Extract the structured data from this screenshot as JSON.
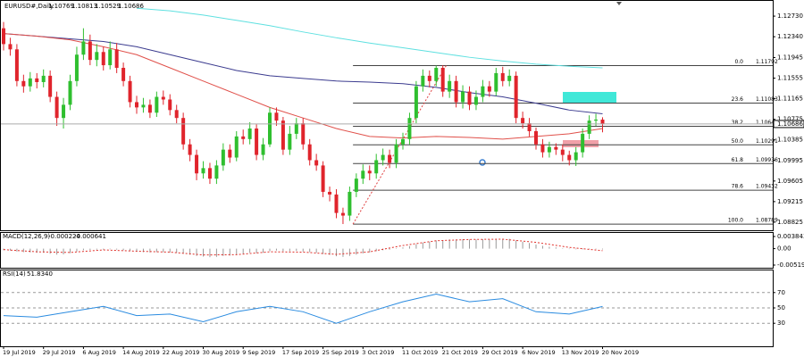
{
  "chart_data": [
    {
      "type": "candlestick",
      "title": "EURUSD#,Daily",
      "up_color": "#2fbf2f",
      "down_color": "#e0242c",
      "open": [
        1.125,
        1.122,
        1.121,
        1.115,
        1.114,
        1.1155,
        1.1148,
        1.116,
        1.112,
        1.108,
        1.1105,
        1.115,
        1.12,
        1.1225,
        1.119,
        1.1205,
        1.118,
        1.121,
        1.1175,
        1.115,
        1.111,
        1.11,
        1.1105,
        1.109,
        1.112,
        1.1115,
        1.1095,
        1.108,
        1.103,
        1.101,
        1.0975,
        1.0985,
        1.0965,
        1.099,
        1.102,
        1.1005,
        1.1045,
        1.104,
        1.106,
        1.101,
        1.103,
        1.109,
        1.1075,
        1.102,
        1.105,
        1.107,
        1.103,
        1.1,
        1.099,
        1.094,
        1.0935,
        1.09,
        1.0895,
        1.094,
        1.0965,
        1.098,
        1.0975,
        1.1,
        1.101,
        1.0995,
        1.103,
        1.104,
        1.108,
        1.114,
        1.116,
        1.115,
        1.1175,
        1.113,
        1.115,
        1.111,
        1.113,
        1.1105,
        1.112,
        1.114,
        1.113,
        1.1165,
        1.115,
        1.116,
        1.108,
        1.107,
        1.1055,
        1.103,
        1.1015,
        1.1025,
        1.102,
        1.101,
        1.1,
        1.1015,
        1.105,
        1.1075,
        1.10769
      ],
      "high": [
        1.1262,
        1.1232,
        1.122,
        1.1162,
        1.1167,
        1.1165,
        1.1172,
        1.117,
        1.113,
        1.1118,
        1.1162,
        1.1215,
        1.125,
        1.1238,
        1.122,
        1.1215,
        1.1225,
        1.1222,
        1.1185,
        1.116,
        1.1122,
        1.1118,
        1.1115,
        1.113,
        1.1132,
        1.1125,
        1.1105,
        1.109,
        1.104,
        1.102,
        1.0998,
        1.0995,
        1.1,
        1.1032,
        1.103,
        1.1055,
        1.1058,
        1.1072,
        1.1068,
        1.1042,
        1.11,
        1.11,
        1.1082,
        1.1065,
        1.108,
        1.108,
        1.104,
        1.1012,
        1.0998,
        1.095,
        1.0945,
        1.091,
        1.095,
        1.0975,
        1.0992,
        1.099,
        1.1012,
        1.1022,
        1.102,
        1.104,
        1.1052,
        1.109,
        1.115,
        1.1172,
        1.117,
        1.11792,
        1.118,
        1.1162,
        1.116,
        1.1142,
        1.114,
        1.1132,
        1.1152,
        1.115,
        1.1175,
        1.1177,
        1.1172,
        1.1168,
        1.1092,
        1.108,
        1.1062,
        1.104,
        1.1035,
        1.1032,
        1.103,
        1.1018,
        1.1025,
        1.106,
        1.1085,
        1.1088,
        1.10813
      ],
      "low": [
        1.1208,
        1.1198,
        1.114,
        1.1128,
        1.113,
        1.1136,
        1.1138,
        1.111,
        1.1065,
        1.106,
        1.1095,
        1.114,
        1.119,
        1.118,
        1.1178,
        1.117,
        1.1172,
        1.1165,
        1.114,
        1.11,
        1.1088,
        1.109,
        1.108,
        1.1082,
        1.1105,
        1.1085,
        1.107,
        1.102,
        1.0998,
        1.0962,
        1.0965,
        1.0955,
        1.0955,
        1.098,
        1.0995,
        1.0998,
        1.103,
        1.103,
        1.1,
        1.1,
        1.1025,
        1.1065,
        1.101,
        1.101,
        1.104,
        1.102,
        1.099,
        1.098,
        1.093,
        1.0922,
        1.089,
        1.0879,
        1.0885,
        1.093,
        1.0955,
        1.0962,
        1.0965,
        1.099,
        1.0985,
        1.0985,
        1.102,
        1.103,
        1.107,
        1.113,
        1.1138,
        1.114,
        1.112,
        1.1118,
        1.11,
        1.1098,
        1.1095,
        1.1095,
        1.111,
        1.112,
        1.1122,
        1.114,
        1.114,
        1.107,
        1.106,
        1.1045,
        1.102,
        1.1005,
        1.1005,
        1.101,
        1.0998,
        1.099,
        1.0989,
        1.1005,
        1.104,
        1.1065,
        1.10529
      ],
      "close": [
        1.122,
        1.121,
        1.115,
        1.114,
        1.1155,
        1.1148,
        1.116,
        1.112,
        1.108,
        1.1105,
        1.115,
        1.12,
        1.1225,
        1.119,
        1.1205,
        1.118,
        1.121,
        1.1175,
        1.115,
        1.111,
        1.11,
        1.1105,
        1.109,
        1.112,
        1.1115,
        1.1095,
        1.108,
        1.103,
        1.101,
        1.0975,
        1.0985,
        1.0965,
        1.099,
        1.102,
        1.1005,
        1.1045,
        1.104,
        1.106,
        1.101,
        1.103,
        1.109,
        1.1075,
        1.102,
        1.105,
        1.107,
        1.103,
        1.1,
        1.099,
        1.094,
        1.0935,
        1.09,
        1.0895,
        1.094,
        1.0965,
        1.098,
        1.0975,
        1.1,
        1.101,
        1.0995,
        1.103,
        1.104,
        1.108,
        1.114,
        1.116,
        1.115,
        1.1175,
        1.113,
        1.115,
        1.111,
        1.113,
        1.1105,
        1.112,
        1.114,
        1.113,
        1.1165,
        1.115,
        1.116,
        1.108,
        1.107,
        1.1055,
        1.103,
        1.1015,
        1.1025,
        1.102,
        1.101,
        1.1,
        1.1015,
        1.105,
        1.1075,
        1.10769,
        1.10686
      ],
      "ylim": [
        1.08672,
        1.12968
      ],
      "yticks": [
        {
          "value": 1.1273,
          "label": "1.12730"
        },
        {
          "value": 1.1234,
          "label": "1.12340"
        },
        1.11945,
        1.11555,
        1.11165,
        1.10775,
        1.10385,
        1.09995,
        1.09605,
        1.09215,
        1.08825
      ],
      "xticks": [
        {
          "value": 0,
          "label": "19 Jul 2019"
        },
        {
          "value": 6,
          "label": "29 Jul 2019"
        },
        {
          "value": 12,
          "label": "6 Aug 2019"
        },
        {
          "value": 18,
          "label": "14 Aug 2019"
        },
        {
          "value": 24,
          "label": "22 Aug 2019"
        },
        {
          "value": 30,
          "label": "30 Aug 2019"
        },
        {
          "value": 36,
          "label": "9 Sep 2019"
        },
        {
          "value": 42,
          "label": "17 Sep 2019"
        },
        {
          "value": 48,
          "label": "25 Sep 2019"
        },
        {
          "value": 54,
          "label": "3 Oct 2019"
        },
        {
          "value": 60,
          "label": "11 Oct 2019"
        },
        {
          "value": 66,
          "label": "21 Oct 2019"
        },
        {
          "value": 72,
          "label": "29 Oct 2019"
        },
        {
          "value": 78,
          "label": "6 Nov 2019"
        },
        {
          "value": 84,
          "label": "13 Nov 2019"
        },
        {
          "value": 90,
          "label": "20 Nov 2019"
        }
      ],
      "moving_averages": [
        {
          "color": "#5ee0e0",
          "x": [
            0,
            5,
            10,
            15,
            20,
            25,
            30,
            35,
            40,
            45,
            50,
            55,
            60,
            65,
            70,
            75,
            80,
            85,
            90
          ],
          "values": [
            null,
            null,
            null,
            null,
            1.1288,
            1.1283,
            1.1275,
            1.1265,
            1.1255,
            1.1243,
            1.1232,
            1.1222,
            1.1213,
            1.1204,
            1.1195,
            1.1188,
            1.1182,
            1.1178,
            1.1175
          ]
        },
        {
          "color": "#3b3b8f",
          "x": [
            0,
            5,
            10,
            15,
            20,
            25,
            30,
            35,
            40,
            45,
            50,
            55,
            60,
            65,
            70,
            75,
            80,
            85,
            90
          ],
          "values": [
            1.124,
            1.1235,
            1.123,
            1.1225,
            1.1215,
            1.12,
            1.1185,
            1.117,
            1.116,
            1.1155,
            1.115,
            1.1148,
            1.1145,
            1.1138,
            1.1128,
            1.112,
            1.1108,
            1.1095,
            1.1088
          ]
        },
        {
          "color": "#e0504a",
          "x": [
            0,
            5,
            10,
            15,
            20,
            25,
            30,
            35,
            40,
            45,
            50,
            55,
            60,
            65,
            70,
            75,
            80,
            85,
            90
          ],
          "values": [
            1.124,
            1.1235,
            1.1228,
            1.1215,
            1.12,
            1.1175,
            1.115,
            1.1125,
            1.11,
            1.108,
            1.106,
            1.1045,
            1.1042,
            1.1045,
            1.1043,
            1.104,
            1.1045,
            1.105,
            1.106
          ]
        }
      ],
      "fibonacci": [
        {
          "level": "0.0",
          "value": 1.11792
        },
        {
          "level": "23.6",
          "value": 1.11083
        },
        {
          "level": "38.2",
          "value": 1.10643
        },
        {
          "level": "50.0",
          "value": 1.10291
        },
        {
          "level": "61.8",
          "value": 1.09936
        },
        {
          "level": "78.6",
          "value": 1.09432
        },
        {
          "level": "100.0",
          "value": 1.08789
        }
      ]
    },
    {
      "type": "macd",
      "title": "MACD(12,26,9)",
      "color": "#9a9a9a",
      "signal_color": "#e0302a",
      "histogram": [
        -0.0005,
        -0.0006,
        -0.0009,
        -0.0011,
        -0.0012,
        -0.0013,
        -0.0013,
        -0.0016,
        -0.0019,
        -0.0018,
        -0.0014,
        -0.0009,
        -0.0005,
        -0.0004,
        -0.0003,
        -0.0003,
        -0.0002,
        -0.0003,
        -0.0005,
        -0.0008,
        -0.001,
        -0.0011,
        -0.0012,
        -0.0011,
        -0.0011,
        -0.0012,
        -0.0013,
        -0.0016,
        -0.0019,
        -0.0023,
        -0.0025,
        -0.0027,
        -0.0026,
        -0.0023,
        -0.0022,
        -0.0018,
        -0.0016,
        -0.0013,
        -0.0014,
        -0.0013,
        -0.0008,
        -0.0006,
        -0.0008,
        -0.0008,
        -0.0007,
        -0.0009,
        -0.0011,
        -0.0013,
        -0.0017,
        -0.002,
        -0.0024,
        -0.0026,
        -0.0023,
        -0.0019,
        -0.0015,
        -0.0012,
        -0.0008,
        -0.0005,
        -0.0003,
        0.0001,
        0.0004,
        0.0008,
        0.0014,
        0.0019,
        0.0022,
        0.0026,
        0.0027,
        0.0029,
        0.0029,
        0.003,
        0.0029,
        0.0029,
        0.003,
        0.0029,
        0.0031,
        0.0031,
        0.0031,
        0.0026,
        0.0022,
        0.0018,
        0.0013,
        0.0009,
        0.0006,
        0.0004,
        0.0001,
        -0.0001,
        -0.0002,
        -0.0002,
        -0.0001,
        -0.0001,
        -0.000224
      ],
      "signal": {
        "x": [
          0,
          5,
          10,
          15,
          20,
          25,
          30,
          35,
          40,
          45,
          50,
          55,
          60,
          65,
          70,
          75,
          80,
          85,
          90
        ],
        "values": [
          -0.0003,
          -0.001,
          -0.0012,
          -0.0004,
          -0.0008,
          -0.0011,
          -0.002,
          -0.0019,
          -0.001,
          -0.0011,
          -0.0018,
          -0.001,
          0.001,
          0.0025,
          0.0029,
          0.003,
          0.002,
          0.0004,
          -0.000641
        ]
      },
      "ylim": [
        -0.006043,
        0.00469
      ],
      "yticks": [
        0.003843,
        {
          "value": 0,
          "label": "0.00"
        },
        -0.005196
      ]
    },
    {
      "type": "line",
      "title": "RSI(14)",
      "color": "#2a8be0",
      "x": [
        0,
        5,
        10,
        15,
        20,
        25,
        30,
        35,
        40,
        45,
        50,
        55,
        60,
        65,
        70,
        75,
        80,
        85,
        90
      ],
      "values": [
        40,
        38,
        45,
        52,
        40,
        42,
        32,
        45,
        52,
        45,
        30,
        45,
        58,
        68,
        58,
        62,
        45,
        42,
        51.834
      ],
      "value_labels": [
        null,
        null,
        null,
        null,
        null,
        null,
        null,
        null,
        null,
        null,
        null,
        null,
        null,
        null,
        null,
        null,
        null,
        null,
        "51.8340"
      ],
      "ylim": [
        0,
        100
      ],
      "yticks": [
        70,
        50,
        30
      ]
    }
  ]
}
